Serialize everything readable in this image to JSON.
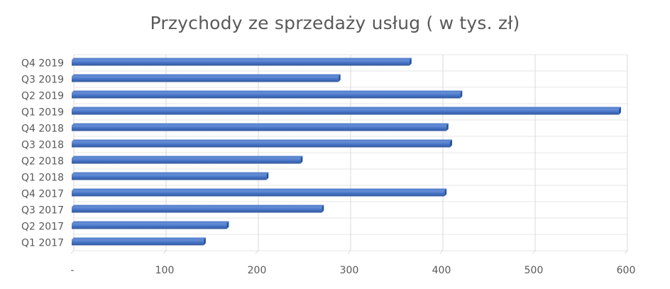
{
  "chart_data": {
    "type": "bar",
    "orientation": "horizontal",
    "title": "Przychody ze sprzedaży usług ( w tys. zł)",
    "xlabel": "",
    "ylabel": "",
    "xlim": [
      0,
      600
    ],
    "x_ticks": [
      0,
      100,
      200,
      300,
      400,
      500,
      600
    ],
    "x_tick_labels": [
      "-",
      "100",
      "200",
      "300",
      "400",
      "500",
      "600"
    ],
    "minor_gridlines": true,
    "grid": true,
    "legend": "none",
    "bar_color": "#4472C4",
    "categories": [
      "Q1 2017",
      "Q2 2017",
      "Q3 2017",
      "Q4 2017",
      "Q1 2018",
      "Q2 2018",
      "Q3 2018",
      "Q4 2018",
      "Q1 2019",
      "Q2 2019",
      "Q3 2019",
      "Q4 2019"
    ],
    "values": [
      143,
      168,
      271,
      404,
      211,
      248,
      410,
      406,
      593,
      421,
      289,
      366
    ]
  }
}
